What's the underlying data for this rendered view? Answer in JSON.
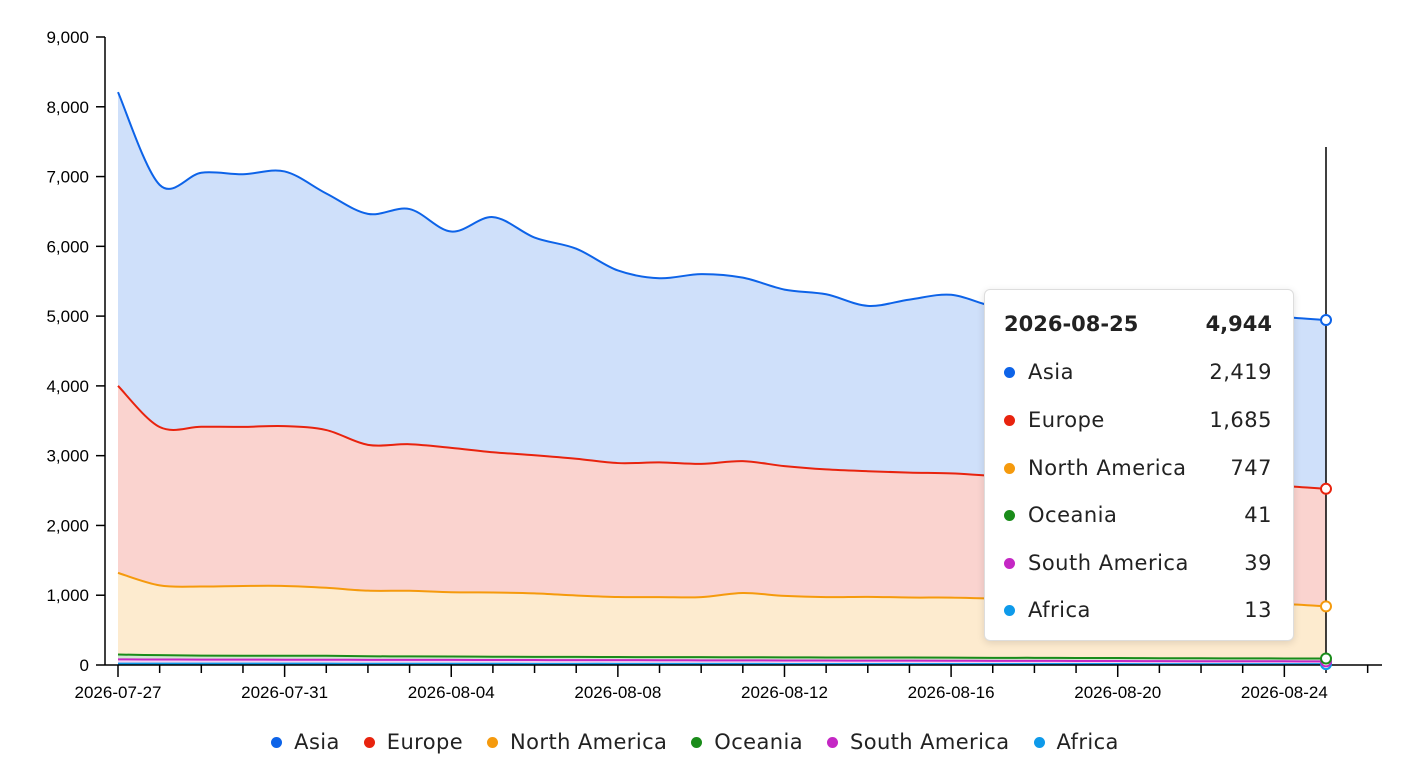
{
  "chart_data": {
    "type": "area",
    "stacked": true,
    "x": [
      "2026-07-27",
      "2026-07-28",
      "2026-07-29",
      "2026-07-30",
      "2026-07-31",
      "2026-08-01",
      "2026-08-02",
      "2026-08-03",
      "2026-08-04",
      "2026-08-05",
      "2026-08-06",
      "2026-08-07",
      "2026-08-08",
      "2026-08-09",
      "2026-08-10",
      "2026-08-11",
      "2026-08-12",
      "2026-08-13",
      "2026-08-14",
      "2026-08-15",
      "2026-08-16",
      "2026-08-17",
      "2026-08-18",
      "2026-08-19",
      "2026-08-20",
      "2026-08-21",
      "2026-08-22",
      "2026-08-23",
      "2026-08-24",
      "2026-08-25"
    ],
    "xticks": [
      "2026-07-27",
      "2026-07-31",
      "2026-08-04",
      "2026-08-08",
      "2026-08-12",
      "2026-08-16",
      "2026-08-20",
      "2026-08-24"
    ],
    "ylim": [
      0,
      9000
    ],
    "yticks": [
      "0",
      "1,000",
      "2,000",
      "3,000",
      "4,000",
      "5,000",
      "6,000",
      "7,000",
      "8,000",
      "9,000"
    ],
    "grid": false,
    "legend_position": "bottom",
    "series": [
      {
        "name": "Africa",
        "color": "#0e9aea",
        "values": [
          20,
          20,
          19,
          19,
          19,
          19,
          18,
          18,
          18,
          18,
          17,
          17,
          17,
          16,
          16,
          16,
          15,
          15,
          15,
          15,
          15,
          14,
          14,
          14,
          14,
          13,
          13,
          13,
          13,
          13
        ]
      },
      {
        "name": "South America",
        "color": "#c427c4",
        "values": [
          60,
          59,
          58,
          58,
          57,
          57,
          56,
          55,
          55,
          54,
          54,
          53,
          53,
          52,
          51,
          50,
          50,
          49,
          48,
          47,
          46,
          45,
          45,
          44,
          43,
          42,
          41,
          40,
          40,
          39
        ]
      },
      {
        "name": "Oceania",
        "color": "#1a8c1a",
        "values": [
          70,
          62,
          58,
          56,
          57,
          56,
          51,
          51,
          49,
          47,
          45,
          46,
          44,
          45,
          45,
          45,
          45,
          44,
          44,
          45,
          45,
          44,
          44,
          43,
          43,
          42,
          42,
          42,
          41,
          41
        ]
      },
      {
        "name": "North America",
        "color": "#f59a0d",
        "values": [
          1170,
          1000,
          990,
          1000,
          1000,
          975,
          940,
          940,
          920,
          920,
          910,
          880,
          860,
          860,
          860,
          920,
          880,
          865,
          870,
          860,
          860,
          850,
          845,
          830,
          830,
          820,
          810,
          790,
          780,
          747
        ]
      },
      {
        "name": "Europe",
        "color": "#e8230e",
        "values": [
          2680,
          2270,
          2290,
          2280,
          2290,
          2260,
          2090,
          2100,
          2070,
          2010,
          1980,
          1960,
          1920,
          1930,
          1910,
          1890,
          1860,
          1830,
          1800,
          1790,
          1780,
          1760,
          1750,
          1740,
          1720,
          1720,
          1710,
          1700,
          1690,
          1685
        ]
      },
      {
        "name": "Asia",
        "color": "#0d63e8",
        "values": [
          4210,
          3470,
          3640,
          3620,
          3650,
          3390,
          3310,
          3370,
          3100,
          3370,
          3120,
          3010,
          2760,
          2640,
          2720,
          2630,
          2530,
          2510,
          2370,
          2480,
          2560,
          2430,
          2410,
          2400,
          2390,
          2400,
          2410,
          2420,
          2420,
          2419
        ]
      }
    ]
  },
  "tooltip": {
    "date": "2026-08-25",
    "total": "4,944",
    "rows": [
      {
        "name": "Asia",
        "value": "2,419",
        "color": "#0d63e8"
      },
      {
        "name": "Europe",
        "value": "1,685",
        "color": "#e8230e"
      },
      {
        "name": "North America",
        "value": "747",
        "color": "#f59a0d"
      },
      {
        "name": "Oceania",
        "value": "41",
        "color": "#1a8c1a"
      },
      {
        "name": "South America",
        "value": "39",
        "color": "#c427c4"
      },
      {
        "name": "Africa",
        "value": "13",
        "color": "#0e9aea"
      }
    ]
  },
  "legend": [
    {
      "name": "Asia",
      "color": "#0d63e8"
    },
    {
      "name": "Europe",
      "color": "#e8230e"
    },
    {
      "name": "North America",
      "color": "#f59a0d"
    },
    {
      "name": "Oceania",
      "color": "#1a8c1a"
    },
    {
      "name": "South America",
      "color": "#c427c4"
    },
    {
      "name": "Africa",
      "color": "#0e9aea"
    }
  ]
}
